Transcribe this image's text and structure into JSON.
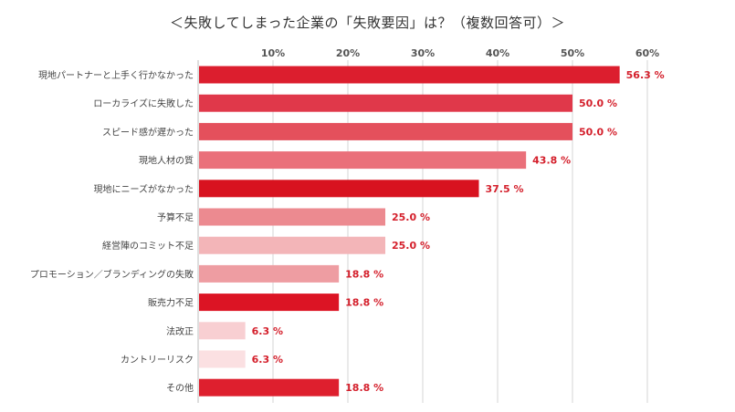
{
  "chart_data": {
    "type": "bar",
    "orientation": "horizontal",
    "title": "＜失敗してしまった企業の「失敗要因」は？（複数回答可）＞",
    "xlabel": "",
    "ylabel": "",
    "xlim": [
      0,
      60
    ],
    "grid": true,
    "tick_values": [
      10,
      20,
      30,
      40,
      50,
      60
    ],
    "tick_labels": [
      "10%",
      "20%",
      "30%",
      "40%",
      "50%",
      "60%"
    ],
    "categories": [
      "現地パートナーと上手く行かなかった",
      "ローカライズに失敗した",
      "スピード感が遅かった",
      "現地人材の質",
      "現地にニーズがなかった",
      "予算不足",
      "経営陣のコミット不足",
      "プロモーション／ブランディングの失敗",
      "販売力不足",
      "法改正",
      "カントリーリスク",
      "その他"
    ],
    "values": [
      56.3,
      50.0,
      50.0,
      43.8,
      37.5,
      25.0,
      25.0,
      18.8,
      18.8,
      6.3,
      6.3,
      18.8
    ],
    "value_labels": [
      "56.3 %",
      "50.0 %",
      "50.0 %",
      "43.8 %",
      "37.5 %",
      "25.0 %",
      "25.0 %",
      "18.8 %",
      "18.8 %",
      "6.3 %",
      "6.3 %",
      "18.8 %"
    ],
    "bar_colors": [
      "#dc1e2e",
      "#e0384a",
      "#e4505c",
      "#ea707a",
      "#d8121f",
      "#ec8a90",
      "#f3b5b8",
      "#ee9da2",
      "#dc1424",
      "#f8cfd2",
      "#fbe0e2",
      "#de1f2e"
    ],
    "label_color": "#d41f2b"
  }
}
